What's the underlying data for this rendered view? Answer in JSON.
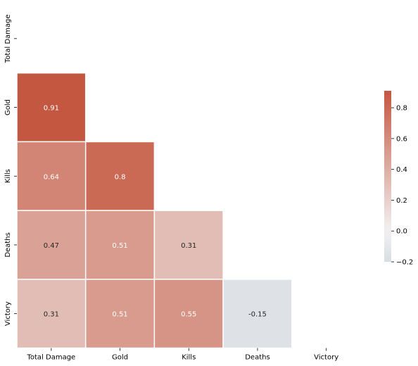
{
  "chart_data": {
    "type": "heatmap",
    "title": "",
    "xlabel": "",
    "ylabel": "",
    "variables": [
      "Total Damage",
      "Gold",
      "Kills",
      "Deaths",
      "Victory"
    ],
    "mask": "upper-triangle-including-diagonal",
    "matrix": [
      [
        null,
        null,
        null,
        null,
        null
      ],
      [
        0.91,
        null,
        null,
        null,
        null
      ],
      [
        0.64,
        0.8,
        null,
        null,
        null
      ],
      [
        0.47,
        0.51,
        0.31,
        null,
        null
      ],
      [
        0.31,
        0.51,
        0.55,
        -0.15,
        null
      ]
    ],
    "cell_labels": [
      [
        null,
        null,
        null,
        null,
        null
      ],
      [
        "0.91",
        null,
        null,
        null,
        null
      ],
      [
        "0.64",
        "0.8",
        null,
        null,
        null
      ],
      [
        "0.47",
        "0.51",
        "0.31",
        null,
        null
      ],
      [
        "0.31",
        "0.51",
        "0.55",
        "-0.15",
        null
      ]
    ],
    "colorbar": {
      "range": [
        -0.2,
        0.91
      ],
      "center": 0,
      "ticks": [
        -0.2,
        0.0,
        0.2,
        0.4,
        0.6,
        0.8
      ],
      "tick_labels": [
        "−0.2",
        "0.0",
        "0.2",
        "0.4",
        "0.6",
        "0.8"
      ],
      "colors": {
        "negative": "#d7dde2",
        "neutral": "#f2f2f2",
        "positive": "#c4573f"
      }
    },
    "annotation_colors": {
      "light": "#ffffff",
      "dark": "#262626"
    },
    "grid_line_color": "#ffffff"
  }
}
